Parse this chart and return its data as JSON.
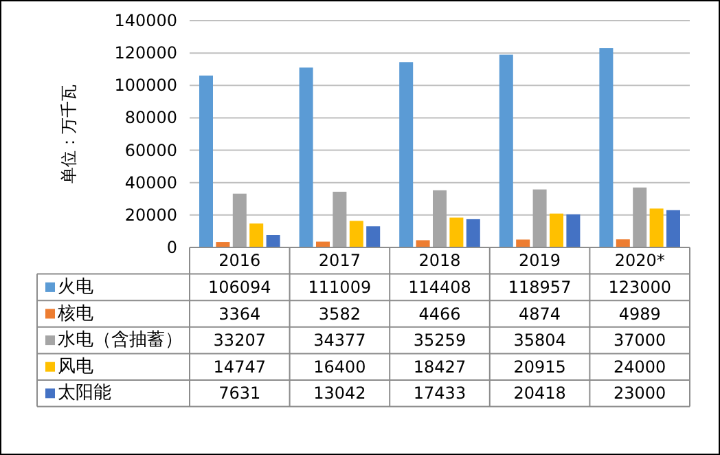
{
  "chart_data": {
    "type": "bar",
    "ylabel": "单位：万千瓦",
    "categories": [
      "2016",
      "2017",
      "2018",
      "2019",
      "2020*"
    ],
    "series": [
      {
        "name": "火电",
        "color": "#5b9bd5",
        "values": [
          106094,
          111009,
          114408,
          118957,
          123000
        ]
      },
      {
        "name": "核电",
        "color": "#ed7d31",
        "values": [
          3364,
          3582,
          4466,
          4874,
          4989
        ]
      },
      {
        "name": "水电（含抽蓄）",
        "color": "#a5a5a5",
        "values": [
          33207,
          34377,
          35259,
          35804,
          37000
        ]
      },
      {
        "name": "风电",
        "color": "#ffc000",
        "values": [
          14747,
          16400,
          18427,
          20915,
          24000
        ]
      },
      {
        "name": "太阳能",
        "color": "#4472c4",
        "values": [
          7631,
          13042,
          17433,
          20418,
          23000
        ]
      }
    ],
    "ylim": [
      0,
      140000
    ],
    "yticks": [
      0,
      20000,
      40000,
      60000,
      80000,
      100000,
      120000,
      140000
    ],
    "grid": "y",
    "legend": "bottom",
    "data_labels": true
  }
}
